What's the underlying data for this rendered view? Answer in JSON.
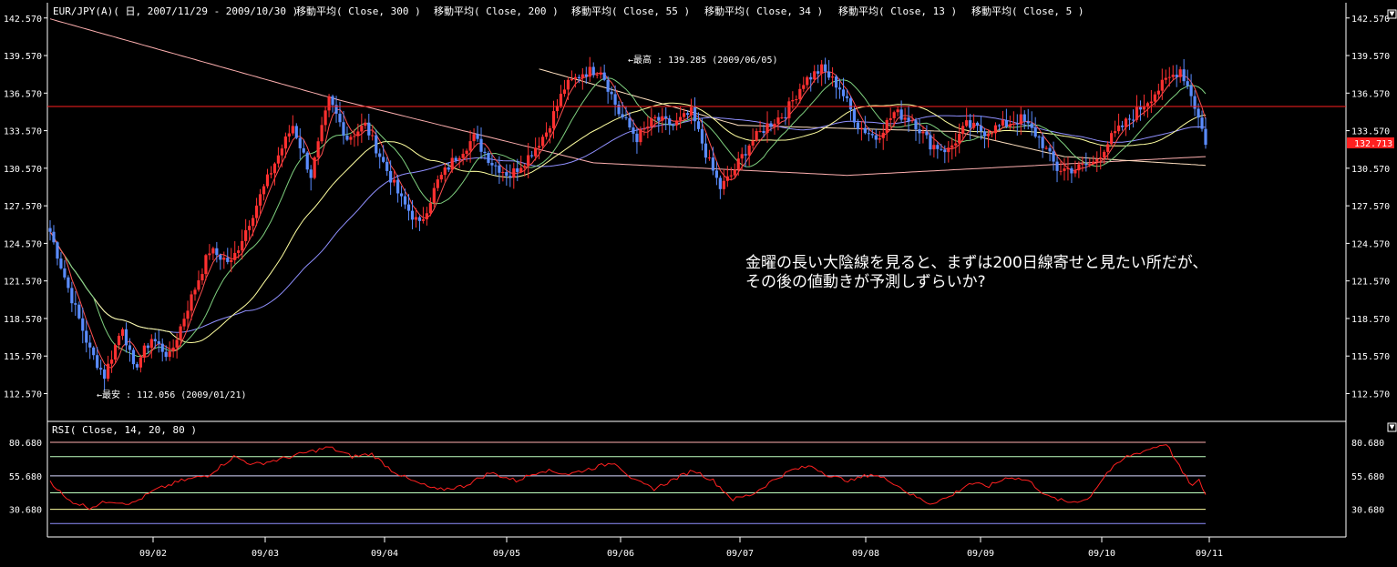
{
  "main_panel": {
    "header": {
      "symbol": "EUR/JPY(A)( 日, 2007/11/29 - 2009/10/30 )",
      "indicators": [
        "移動平均( Close, 300 )",
        "移動平均( Close, 200 )",
        "移動平均( Close, 55 )",
        "移動平均( Close, 34 )",
        "移動平均( Close, 13 )",
        "移動平均( Close, 5 )"
      ]
    },
    "y_ticks": [
      "142.570",
      "139.570",
      "136.570",
      "133.570",
      "130.570",
      "127.570",
      "124.570",
      "121.570",
      "118.570",
      "115.570",
      "112.570"
    ],
    "current_price": "132.713",
    "high_annotation": "←最高 : 139.285 (2009/06/05)",
    "low_annotation": "←最安 : 112.056 (2009/01/21)",
    "comment_line1": "金曜の長い大陰線を見ると、まずは200日線寄せと見たい所だが、",
    "comment_line2": "その後の値動きが予測しずらいか?"
  },
  "rsi_panel": {
    "header": "RSI( Close, 14, 20, 80 )",
    "y_ticks": [
      "80.680",
      "55.680",
      "30.680"
    ]
  },
  "x_ticks": [
    "09/02",
    "09/03",
    "09/04",
    "09/05",
    "09/06",
    "09/07",
    "09/08",
    "09/09",
    "09/10",
    "09/11"
  ],
  "colors": {
    "background": "#000000",
    "grid": "#ffffff",
    "up_candle": "#ff3030",
    "down_candle": "#5a8cff",
    "horizontal_line": "#ff2020",
    "ma300": "#ffb0b0",
    "ma200": "#ffe0c0",
    "ma55": "#7fd07f",
    "ma34": "#9090ff",
    "ma13": "#ffffa0",
    "ma5": "#ff5050",
    "rsi": "#ff2020",
    "price_tag": "#ff2020"
  },
  "chart_data": {
    "type": "candlestick",
    "x_range": [
      "2009/01/22",
      "2009/10/30"
    ],
    "ylim": [
      110.57,
      143.57
    ],
    "horizontal_line": 135.5,
    "high": {
      "value": 139.285,
      "date": "2009/06/05"
    },
    "low": {
      "value": 112.056,
      "date": "2009/01/21"
    },
    "anchors": [
      [
        0,
        125.5
      ],
      [
        5,
        121
      ],
      [
        11,
        116
      ],
      [
        15,
        114
      ],
      [
        20,
        118
      ],
      [
        23,
        114.5
      ],
      [
        28,
        117
      ],
      [
        33,
        115.5
      ],
      [
        38,
        119.5
      ],
      [
        44,
        124
      ],
      [
        50,
        123
      ],
      [
        56,
        127
      ],
      [
        62,
        131
      ],
      [
        67,
        134
      ],
      [
        72,
        130
      ],
      [
        77,
        136
      ],
      [
        82,
        133
      ],
      [
        87,
        134
      ],
      [
        92,
        131
      ],
      [
        97,
        128
      ],
      [
        102,
        126
      ],
      [
        107,
        129.5
      ],
      [
        112,
        131.5
      ],
      [
        117,
        133
      ],
      [
        122,
        131
      ],
      [
        127,
        130
      ],
      [
        132,
        131.5
      ],
      [
        137,
        133.5
      ],
      [
        142,
        137
      ],
      [
        147,
        138.2
      ],
      [
        152,
        138.5
      ],
      [
        157,
        135
      ],
      [
        162,
        133
      ],
      [
        167,
        134.5
      ],
      [
        172,
        134
      ],
      [
        177,
        135
      ],
      [
        182,
        131
      ],
      [
        185,
        129
      ],
      [
        188,
        130
      ],
      [
        193,
        132.5
      ],
      [
        198,
        134
      ],
      [
        203,
        135
      ],
      [
        208,
        137.5
      ],
      [
        213,
        138.5
      ],
      [
        218,
        137
      ],
      [
        223,
        134
      ],
      [
        228,
        133
      ],
      [
        233,
        135
      ],
      [
        238,
        134.5
      ],
      [
        243,
        132.5
      ],
      [
        248,
        132
      ],
      [
        253,
        134
      ],
      [
        258,
        133.5
      ],
      [
        263,
        134
      ],
      [
        268,
        134.5
      ],
      [
        273,
        133
      ],
      [
        278,
        130.5
      ],
      [
        283,
        130.5
      ],
      [
        288,
        131
      ],
      [
        293,
        133
      ],
      [
        298,
        134.5
      ],
      [
        303,
        136
      ],
      [
        308,
        137.5
      ],
      [
        312,
        138.5
      ],
      [
        315,
        136.5
      ],
      [
        319,
        132.7
      ]
    ],
    "ma300": [
      [
        0,
        142.5
      ],
      [
        80,
        136
      ],
      [
        150,
        131
      ],
      [
        220,
        130
      ],
      [
        319,
        131.5
      ]
    ],
    "ma200": [
      [
        135,
        138.5
      ],
      [
        190,
        134
      ],
      [
        250,
        133.5
      ],
      [
        280,
        131.5
      ],
      [
        319,
        130.8
      ]
    ],
    "rsi": {
      "ylim": [
        10,
        95
      ],
      "levels": [
        80.68,
        70,
        55.68,
        43,
        30.68,
        20
      ],
      "anchors": [
        [
          0,
          52
        ],
        [
          5,
          38
        ],
        [
          12,
          32
        ],
        [
          18,
          37
        ],
        [
          25,
          35
        ],
        [
          32,
          45
        ],
        [
          40,
          52
        ],
        [
          48,
          56
        ],
        [
          56,
          70
        ],
        [
          62,
          64
        ],
        [
          70,
          68
        ],
        [
          78,
          73
        ],
        [
          85,
          77
        ],
        [
          92,
          70
        ],
        [
          98,
          72
        ],
        [
          104,
          60
        ],
        [
          110,
          52
        ],
        [
          118,
          45
        ],
        [
          126,
          48
        ],
        [
          134,
          58
        ],
        [
          142,
          52
        ],
        [
          150,
          60
        ],
        [
          158,
          57
        ],
        [
          166,
          62
        ],
        [
          172,
          66
        ],
        [
          178,
          52
        ],
        [
          184,
          46
        ],
        [
          190,
          53
        ],
        [
          196,
          60
        ],
        [
          202,
          52
        ],
        [
          208,
          38
        ],
        [
          214,
          42
        ],
        [
          220,
          52
        ],
        [
          226,
          60
        ],
        [
          232,
          63
        ],
        [
          238,
          55
        ],
        [
          244,
          52
        ],
        [
          250,
          57
        ],
        [
          256,
          52
        ],
        [
          262,
          42
        ],
        [
          268,
          35
        ],
        [
          274,
          40
        ],
        [
          280,
          50
        ],
        [
          286,
          48
        ],
        [
          292,
          55
        ],
        [
          298,
          52
        ],
        [
          304,
          40
        ],
        [
          310,
          36
        ],
        [
          316,
          38
        ],
        [
          322,
          58
        ],
        [
          328,
          70
        ],
        [
          334,
          75
        ],
        [
          340,
          80
        ],
        [
          345,
          58
        ],
        [
          348,
          48
        ],
        [
          350,
          52
        ],
        [
          352,
          42
        ]
      ]
    }
  }
}
